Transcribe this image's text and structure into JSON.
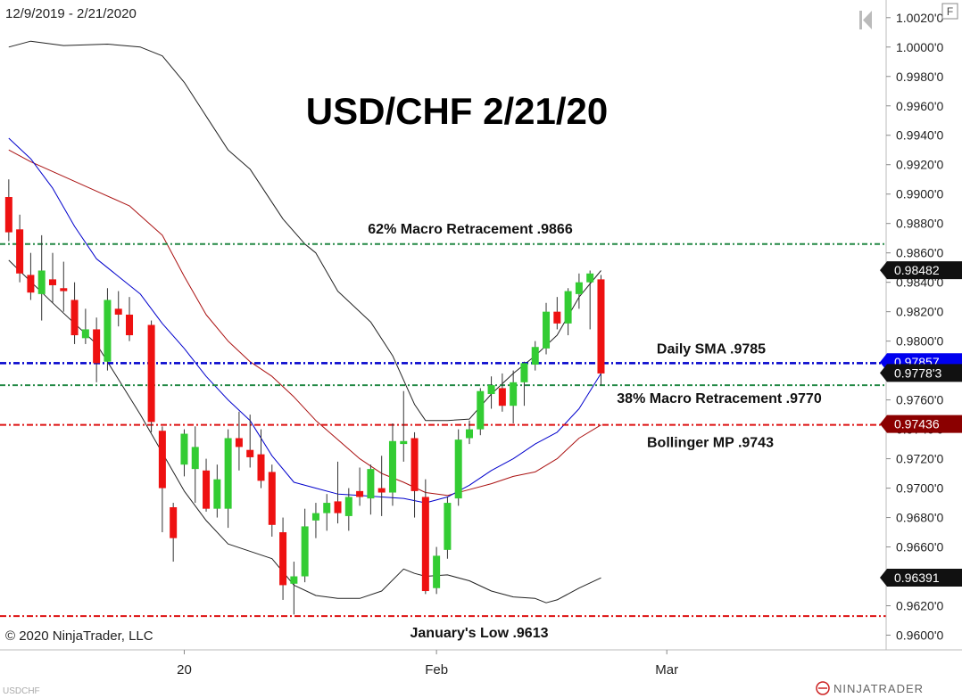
{
  "header": {
    "date_range": "12/9/2019 - 2/21/2020",
    "panel_button": "F"
  },
  "footer": {
    "copyright": "© 2020 NinjaTrader, LLC",
    "instrument": "USDCHF",
    "brand": "NINJATRADER"
  },
  "colors": {
    "up": "#33cc33",
    "down": "#ee1111",
    "sma": "#0000cc",
    "bb_mid": "#aa1111",
    "bb_band": "#222222",
    "fib": "#228844",
    "level_red": "#dd1111"
  },
  "chart_data": {
    "type": "candlestick",
    "title": "USD/CHF 2/21/20",
    "ylim": [
      0.959,
      1.0032
    ],
    "xlim": [
      -0.8,
      80
    ],
    "y_ticks": [
      "1.0020'0",
      "1.0000'0",
      "0.9980'0",
      "0.9960'0",
      "0.9940'0",
      "0.9920'0",
      "0.9900'0",
      "0.9880'0",
      "0.9860'0",
      "0.9840'0",
      "0.9820'0",
      "0.9800'0",
      "0.9780'0",
      "0.9760'0",
      "0.9740'0",
      "0.9720'0",
      "0.9700'0",
      "0.9680'0",
      "0.9660'0",
      "0.9640'0",
      "0.9620'0",
      "0.9600'0"
    ],
    "y_tick_values": [
      1.002,
      1.0,
      0.998,
      0.996,
      0.994,
      0.992,
      0.99,
      0.988,
      0.986,
      0.984,
      0.982,
      0.98,
      0.978,
      0.976,
      0.974,
      0.972,
      0.97,
      0.968,
      0.966,
      0.964,
      0.962,
      0.96
    ],
    "x_ticks": [
      {
        "label": "20",
        "x": 16
      },
      {
        "label": "Feb",
        "x": 39
      },
      {
        "label": "Mar",
        "x": 60
      }
    ],
    "candles": [
      {
        "x": 0,
        "o": 0.9898,
        "h": 0.991,
        "l": 0.9868,
        "c": 0.9874
      },
      {
        "x": 1,
        "o": 0.9876,
        "h": 0.9886,
        "l": 0.984,
        "c": 0.9846
      },
      {
        "x": 2,
        "o": 0.9845,
        "h": 0.986,
        "l": 0.9828,
        "c": 0.9833
      },
      {
        "x": 3,
        "o": 0.9832,
        "h": 0.9872,
        "l": 0.9814,
        "c": 0.9848
      },
      {
        "x": 4,
        "o": 0.9842,
        "h": 0.986,
        "l": 0.9826,
        "c": 0.9838
      },
      {
        "x": 5,
        "o": 0.9836,
        "h": 0.9854,
        "l": 0.982,
        "c": 0.9834
      },
      {
        "x": 6,
        "o": 0.9828,
        "h": 0.984,
        "l": 0.9798,
        "c": 0.9804
      },
      {
        "x": 7,
        "o": 0.9802,
        "h": 0.9822,
        "l": 0.9798,
        "c": 0.9808
      },
      {
        "x": 8,
        "o": 0.9808,
        "h": 0.9816,
        "l": 0.9772,
        "c": 0.9785
      },
      {
        "x": 9,
        "o": 0.9786,
        "h": 0.9836,
        "l": 0.978,
        "c": 0.9828
      },
      {
        "x": 10,
        "o": 0.9822,
        "h": 0.9834,
        "l": 0.981,
        "c": 0.9818
      },
      {
        "x": 11,
        "o": 0.9818,
        "h": 0.983,
        "l": 0.98,
        "c": 0.9804
      },
      {
        "x": 13,
        "o": 0.9811,
        "h": 0.9814,
        "l": 0.9738,
        "c": 0.9745
      },
      {
        "x": 14,
        "o": 0.9739,
        "h": 0.9742,
        "l": 0.967,
        "c": 0.97
      },
      {
        "x": 15,
        "o": 0.9687,
        "h": 0.969,
        "l": 0.965,
        "c": 0.9666
      },
      {
        "x": 16,
        "o": 0.9716,
        "h": 0.974,
        "l": 0.9708,
        "c": 0.9737
      },
      {
        "x": 17,
        "o": 0.9713,
        "h": 0.9742,
        "l": 0.969,
        "c": 0.9728
      },
      {
        "x": 18,
        "o": 0.9712,
        "h": 0.972,
        "l": 0.9684,
        "c": 0.9686
      },
      {
        "x": 19,
        "o": 0.9686,
        "h": 0.9716,
        "l": 0.968,
        "c": 0.9706
      },
      {
        "x": 20,
        "o": 0.9686,
        "h": 0.974,
        "l": 0.9673,
        "c": 0.9734
      },
      {
        "x": 21,
        "o": 0.9734,
        "h": 0.9752,
        "l": 0.9712,
        "c": 0.9728
      },
      {
        "x": 22,
        "o": 0.9726,
        "h": 0.975,
        "l": 0.9714,
        "c": 0.9721
      },
      {
        "x": 23,
        "o": 0.9723,
        "h": 0.974,
        "l": 0.97,
        "c": 0.9705
      },
      {
        "x": 24,
        "o": 0.9711,
        "h": 0.9716,
        "l": 0.9667,
        "c": 0.9675
      },
      {
        "x": 25,
        "o": 0.967,
        "h": 0.968,
        "l": 0.9624,
        "c": 0.9634
      },
      {
        "x": 26,
        "o": 0.9635,
        "h": 0.965,
        "l": 0.9614,
        "c": 0.964
      },
      {
        "x": 27,
        "o": 0.964,
        "h": 0.9686,
        "l": 0.9636,
        "c": 0.9674
      },
      {
        "x": 28,
        "o": 0.9678,
        "h": 0.969,
        "l": 0.9666,
        "c": 0.9683
      },
      {
        "x": 29,
        "o": 0.9683,
        "h": 0.9696,
        "l": 0.9671,
        "c": 0.969
      },
      {
        "x": 30,
        "o": 0.9691,
        "h": 0.9718,
        "l": 0.9676,
        "c": 0.9683
      },
      {
        "x": 31,
        "o": 0.9681,
        "h": 0.97,
        "l": 0.9671,
        "c": 0.9694
      },
      {
        "x": 32,
        "o": 0.9698,
        "h": 0.9714,
        "l": 0.9688,
        "c": 0.9694
      },
      {
        "x": 33,
        "o": 0.9693,
        "h": 0.9716,
        "l": 0.9682,
        "c": 0.9713
      },
      {
        "x": 34,
        "o": 0.97,
        "h": 0.9722,
        "l": 0.9681,
        "c": 0.9697
      },
      {
        "x": 35,
        "o": 0.9697,
        "h": 0.9744,
        "l": 0.9688,
        "c": 0.9732
      },
      {
        "x": 36,
        "o": 0.973,
        "h": 0.9766,
        "l": 0.9718,
        "c": 0.9732
      },
      {
        "x": 37,
        "o": 0.9734,
        "h": 0.9738,
        "l": 0.968,
        "c": 0.9698
      },
      {
        "x": 38,
        "o": 0.9694,
        "h": 0.9706,
        "l": 0.9628,
        "c": 0.963
      },
      {
        "x": 39,
        "o": 0.9632,
        "h": 0.966,
        "l": 0.9628,
        "c": 0.9654
      },
      {
        "x": 40,
        "o": 0.9658,
        "h": 0.9694,
        "l": 0.9652,
        "c": 0.969
      },
      {
        "x": 41,
        "o": 0.9693,
        "h": 0.974,
        "l": 0.9688,
        "c": 0.9733
      },
      {
        "x": 42,
        "o": 0.9734,
        "h": 0.9746,
        "l": 0.973,
        "c": 0.974
      },
      {
        "x": 43,
        "o": 0.974,
        "h": 0.9768,
        "l": 0.9736,
        "c": 0.9766
      },
      {
        "x": 44,
        "o": 0.9764,
        "h": 0.9776,
        "l": 0.9754,
        "c": 0.977
      },
      {
        "x": 45,
        "o": 0.9768,
        "h": 0.9778,
        "l": 0.9752,
        "c": 0.9756
      },
      {
        "x": 46,
        "o": 0.9756,
        "h": 0.978,
        "l": 0.9744,
        "c": 0.9772
      },
      {
        "x": 47,
        "o": 0.9772,
        "h": 0.9786,
        "l": 0.9756,
        "c": 0.9785
      },
      {
        "x": 48,
        "o": 0.9784,
        "h": 0.98,
        "l": 0.978,
        "c": 0.9796
      },
      {
        "x": 49,
        "o": 0.9795,
        "h": 0.9826,
        "l": 0.9791,
        "c": 0.982
      },
      {
        "x": 50,
        "o": 0.982,
        "h": 0.983,
        "l": 0.9808,
        "c": 0.9812
      },
      {
        "x": 51,
        "o": 0.9812,
        "h": 0.9836,
        "l": 0.9804,
        "c": 0.9834
      },
      {
        "x": 52,
        "o": 0.9832,
        "h": 0.9846,
        "l": 0.9822,
        "c": 0.984
      },
      {
        "x": 53,
        "o": 0.984,
        "h": 0.9848,
        "l": 0.9808,
        "c": 0.9846
      },
      {
        "x": 54,
        "o": 0.9842,
        "h": 0.9845,
        "l": 0.977,
        "c": 0.9778
      }
    ],
    "upper_band": [
      [
        0,
        1.0
      ],
      [
        2,
        1.0004
      ],
      [
        5,
        1.0001
      ],
      [
        9,
        1.0002
      ],
      [
        12,
        1.0
      ],
      [
        14,
        0.9994
      ],
      [
        16,
        0.9976
      ],
      [
        18,
        0.9953
      ],
      [
        20,
        0.993
      ],
      [
        22,
        0.9917
      ],
      [
        25,
        0.9883
      ],
      [
        27,
        0.9866
      ],
      [
        28,
        0.986
      ],
      [
        30,
        0.9834
      ],
      [
        33,
        0.9813
      ],
      [
        35,
        0.979
      ],
      [
        37,
        0.9757
      ],
      [
        38,
        0.9746
      ],
      [
        40,
        0.9746
      ],
      [
        42,
        0.9747
      ],
      [
        44,
        0.9764
      ],
      [
        46,
        0.9778
      ],
      [
        48,
        0.979
      ],
      [
        50,
        0.9804
      ],
      [
        52,
        0.983
      ],
      [
        54,
        0.9848
      ]
    ],
    "lower_band": [
      [
        0,
        0.9855
      ],
      [
        4,
        0.9826
      ],
      [
        8,
        0.9798
      ],
      [
        12,
        0.975
      ],
      [
        14,
        0.9724
      ],
      [
        16,
        0.9698
      ],
      [
        18,
        0.9678
      ],
      [
        20,
        0.9662
      ],
      [
        24,
        0.9652
      ],
      [
        26,
        0.9634
      ],
      [
        28,
        0.9627
      ],
      [
        30,
        0.9625
      ],
      [
        32,
        0.9625
      ],
      [
        34,
        0.963
      ],
      [
        36,
        0.9645
      ],
      [
        37,
        0.9642
      ],
      [
        38,
        0.964
      ],
      [
        40,
        0.9641
      ],
      [
        42,
        0.9637
      ],
      [
        44,
        0.963
      ],
      [
        46,
        0.9626
      ],
      [
        48,
        0.9625
      ],
      [
        49,
        0.9622
      ],
      [
        50,
        0.9624
      ],
      [
        52,
        0.9632
      ],
      [
        54,
        0.9639
      ]
    ],
    "middle_band": [
      [
        0,
        0.993
      ],
      [
        2,
        0.9922
      ],
      [
        5,
        0.9912
      ],
      [
        8,
        0.9902
      ],
      [
        11,
        0.9892
      ],
      [
        14,
        0.9872
      ],
      [
        16,
        0.9844
      ],
      [
        18,
        0.9818
      ],
      [
        20,
        0.98
      ],
      [
        22,
        0.9786
      ],
      [
        24,
        0.9776
      ],
      [
        26,
        0.9762
      ],
      [
        28,
        0.9746
      ],
      [
        30,
        0.9733
      ],
      [
        32,
        0.972
      ],
      [
        34,
        0.971
      ],
      [
        36,
        0.9704
      ],
      [
        38,
        0.9697
      ],
      [
        40,
        0.9695
      ],
      [
        42,
        0.9699
      ],
      [
        44,
        0.9703
      ],
      [
        46,
        0.9708
      ],
      [
        48,
        0.9711
      ],
      [
        50,
        0.972
      ],
      [
        52,
        0.9734
      ],
      [
        54,
        0.9743
      ]
    ],
    "sma": [
      [
        0,
        0.9938
      ],
      [
        2,
        0.9924
      ],
      [
        4,
        0.9904
      ],
      [
        6,
        0.9878
      ],
      [
        8,
        0.9856
      ],
      [
        10,
        0.9844
      ],
      [
        12,
        0.9832
      ],
      [
        14,
        0.9812
      ],
      [
        16,
        0.9795
      ],
      [
        18,
        0.9776
      ],
      [
        20,
        0.976
      ],
      [
        22,
        0.9746
      ],
      [
        24,
        0.9722
      ],
      [
        26,
        0.9704
      ],
      [
        28,
        0.97
      ],
      [
        30,
        0.9696
      ],
      [
        32,
        0.9695
      ],
      [
        34,
        0.9694
      ],
      [
        36,
        0.9693
      ],
      [
        38,
        0.969
      ],
      [
        40,
        0.9694
      ],
      [
        42,
        0.9702
      ],
      [
        44,
        0.9712
      ],
      [
        46,
        0.972
      ],
      [
        48,
        0.973
      ],
      [
        50,
        0.9738
      ],
      [
        52,
        0.9754
      ],
      [
        54,
        0.9778
      ]
    ],
    "levels": [
      {
        "name": "62% Macro Retracement .9866",
        "value": 0.9866,
        "style": "fib"
      },
      {
        "name": "Daily SMA .9785",
        "value": 0.9785,
        "style": "sma"
      },
      {
        "name": "38% Macro Retracement .9770",
        "value": 0.977,
        "style": "fib"
      },
      {
        "name": "Bollinger MP .9743",
        "value": 0.9743,
        "style": "red"
      },
      {
        "name": "January's Low .9613",
        "value": 0.9613,
        "style": "red"
      }
    ],
    "price_markers": [
      {
        "text": "0.98482",
        "value": 0.98482,
        "bg": "#111111",
        "fg": "#ffffff"
      },
      {
        "text": "0.97857",
        "value": 0.97857,
        "bg": "#0000ee",
        "fg": "#ffffff"
      },
      {
        "text": "0.9778'3",
        "value": 0.97783,
        "bg": "#111111",
        "fg": "#ffffff"
      },
      {
        "text": "0.97436",
        "value": 0.97436,
        "bg": "#8b0000",
        "fg": "#ffffff"
      },
      {
        "text": "0.96391",
        "value": 0.96391,
        "bg": "#111111",
        "fg": "#ffffff"
      }
    ]
  }
}
